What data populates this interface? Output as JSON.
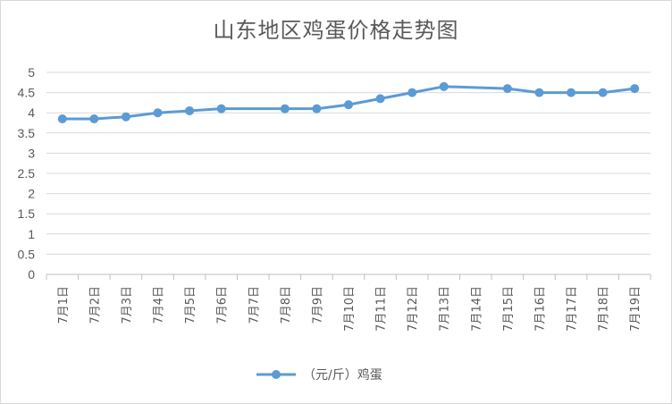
{
  "chart_data": {
    "type": "line",
    "title": "山东地区鸡蛋价格走势图",
    "categories": [
      "7月1日",
      "7月2日",
      "7月3日",
      "7月4日",
      "7月5日",
      "7月6日",
      "7月7日",
      "7月8日",
      "7月9日",
      "7月10日",
      "7月11日",
      "7月12日",
      "7月13日",
      "7月14日",
      "7月15日",
      "7月16日",
      "7月17日",
      "7月18日",
      "7月19日"
    ],
    "series": [
      {
        "name": "（元/斤）鸡蛋",
        "color": "#5b9bd5",
        "values": [
          3.85,
          3.85,
          3.9,
          4.0,
          4.05,
          4.1,
          null,
          4.1,
          4.1,
          4.2,
          4.35,
          4.5,
          4.65,
          null,
          4.6,
          4.5,
          4.5,
          4.5,
          4.6
        ]
      }
    ],
    "ylim": [
      0,
      5
    ],
    "yticks": [
      "0",
      "0.5",
      "1",
      "1.5",
      "2",
      "2.5",
      "3",
      "3.5",
      "4",
      "4.5",
      "5"
    ],
    "grid": true,
    "legend_position": "bottom"
  }
}
